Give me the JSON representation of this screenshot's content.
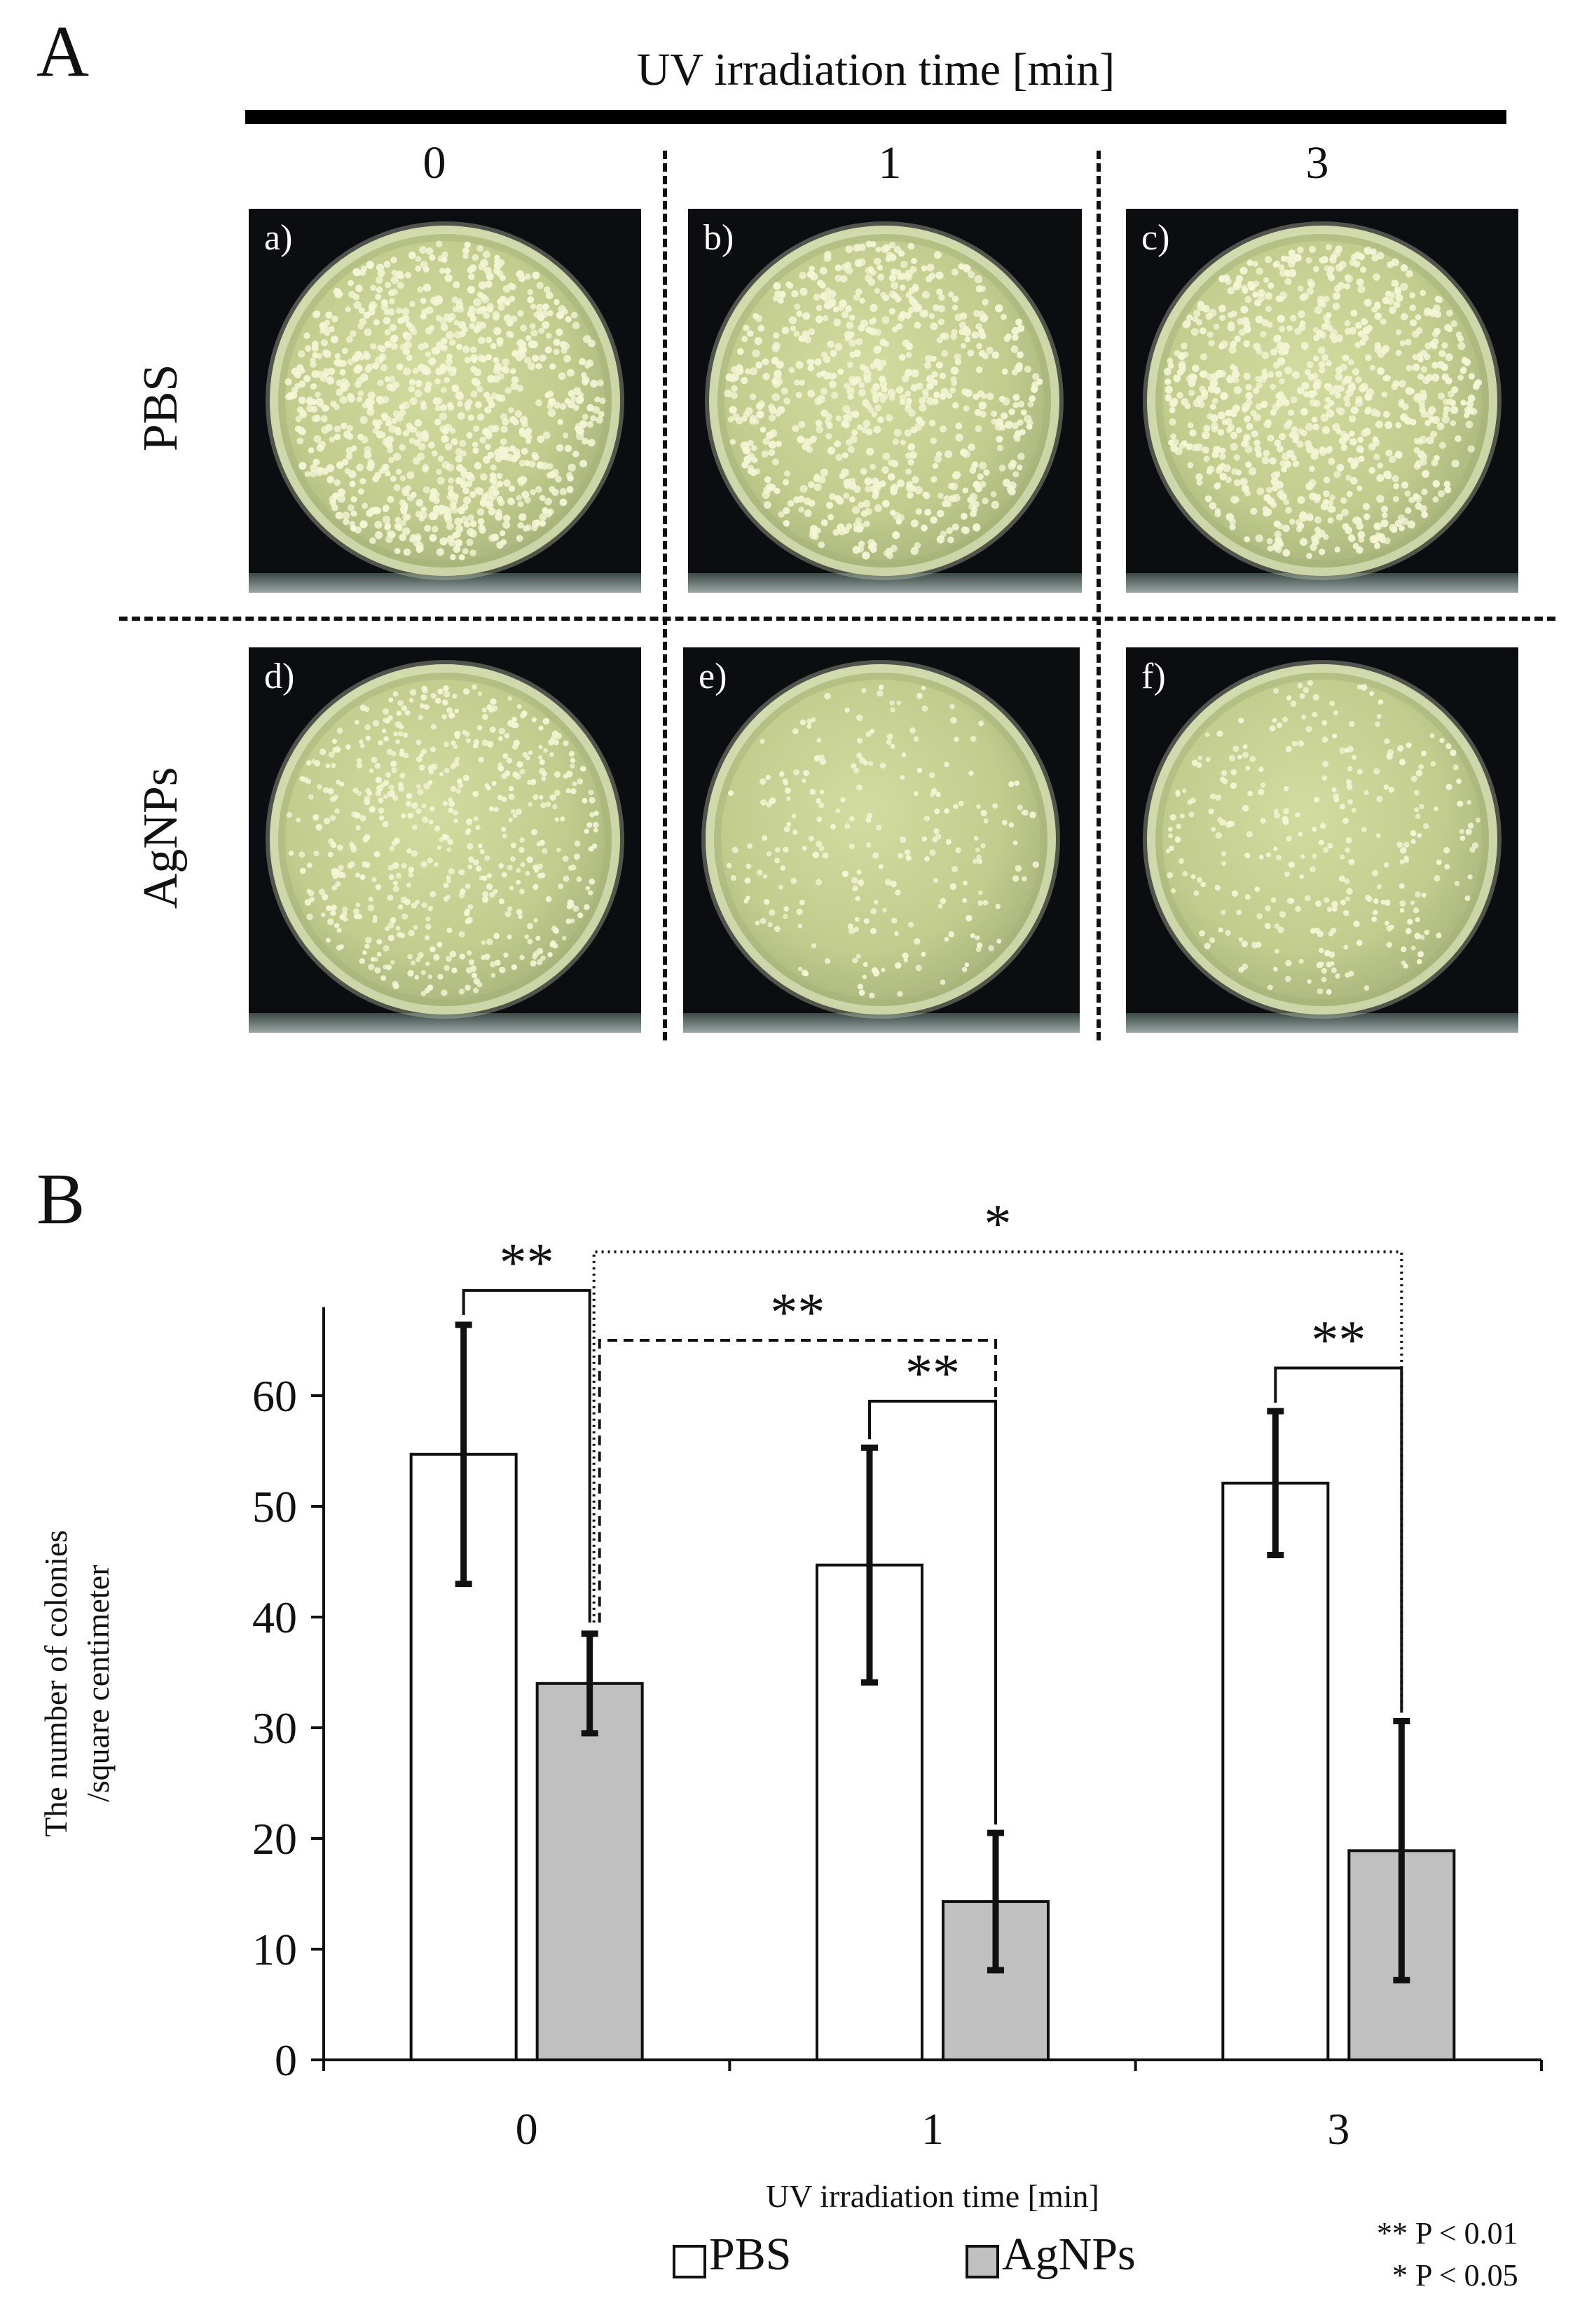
{
  "panel_a": {
    "letter": "A",
    "uv_title": "UV irradiation time [min]",
    "columns": [
      "0",
      "1",
      "3"
    ],
    "rows": [
      "PBS",
      "AgNPs"
    ],
    "plates": [
      {
        "label": "a)",
        "colonies": 900
      },
      {
        "label": "b)",
        "colonies": 680
      },
      {
        "label": "c)",
        "colonies": 780
      },
      {
        "label": "d)",
        "colonies": 560
      },
      {
        "label": "e)",
        "colonies": 230
      },
      {
        "label": "f)",
        "colonies": 300
      }
    ],
    "colors": {
      "dish": "#c1cc8d",
      "colony": "#f3f5d4",
      "background": "#0c0d10"
    }
  },
  "panel_b": {
    "letter": "B",
    "legend": [
      "PBS",
      "AgNPs"
    ],
    "significance_notes": [
      "** P < 0.01",
      "* P < 0.05"
    ]
  },
  "chart_data": {
    "type": "bar",
    "categories": [
      "0",
      "1",
      "3"
    ],
    "series": [
      {
        "name": "PBS",
        "values": [
          54.7,
          44.7,
          52.1
        ],
        "errors": [
          11.7,
          10.6,
          6.5
        ],
        "color": "#ffffff"
      },
      {
        "name": "AgNPs",
        "values": [
          34.0,
          14.3,
          18.9
        ],
        "errors": [
          4.5,
          6.2,
          11.7
        ],
        "color": "#c0c0c0"
      }
    ],
    "xlabel": "UV irradiation time [min]",
    "ylabel": [
      "The number of colonies",
      "/square centimeter"
    ],
    "yticks": [
      0,
      10,
      20,
      30,
      40,
      50,
      60
    ],
    "ylim": [
      0,
      68
    ],
    "grid": false,
    "legend_position": "bottom",
    "annotations": [
      {
        "label": "**",
        "from": "PBS 0 min",
        "to": "AgNPs 0 min",
        "line": "solid"
      },
      {
        "label": "**",
        "from": "PBS 1 min",
        "to": "AgNPs 1 min",
        "line": "solid"
      },
      {
        "label": "**",
        "from": "PBS 3 min",
        "to": "AgNPs 3 min",
        "line": "solid"
      },
      {
        "label": "**",
        "from": "AgNPs 0 min",
        "to": "AgNPs 1 min",
        "line": "dashed"
      },
      {
        "label": "*",
        "from": "AgNPs 0 min",
        "to": "AgNPs 3 min",
        "line": "dotted"
      }
    ]
  }
}
